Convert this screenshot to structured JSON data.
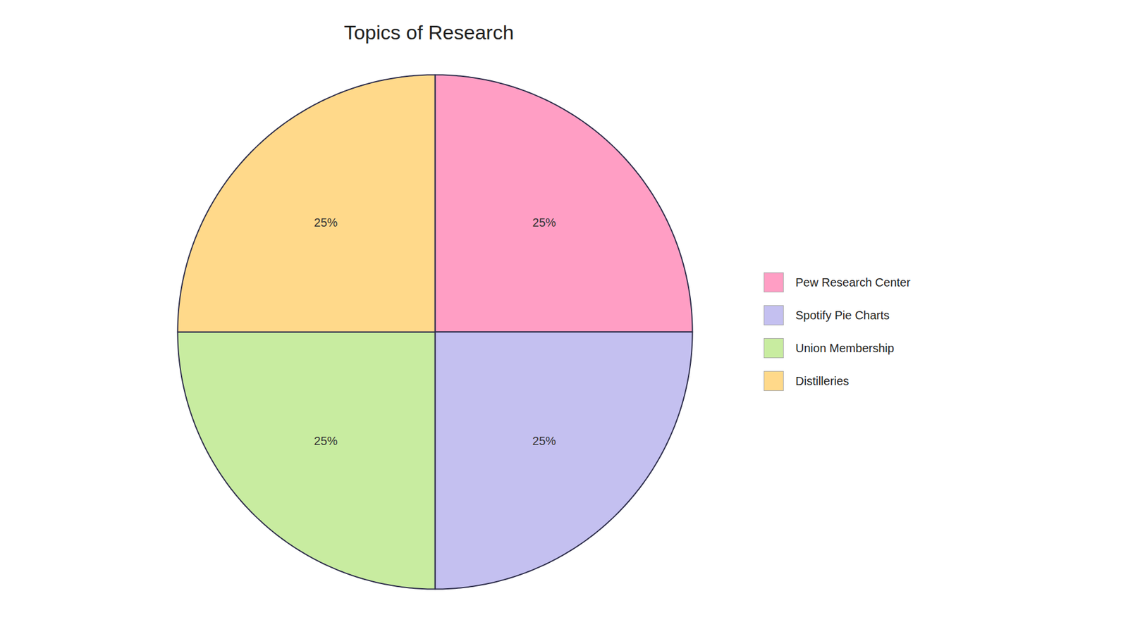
{
  "chart_data": {
    "type": "pie",
    "title": "Topics of Research",
    "categories": [
      "Pew Research Center",
      "Spotify Pie Charts",
      "Union Membership",
      "Distilleries"
    ],
    "values": [
      25,
      25,
      25,
      25
    ],
    "value_labels": [
      "25%",
      "25%",
      "25%",
      "25%"
    ],
    "colors": [
      "#FF9EC4",
      "#C4C0F0",
      "#C8ECA0",
      "#FFD98A"
    ],
    "data_labels": true,
    "legend": "right"
  }
}
